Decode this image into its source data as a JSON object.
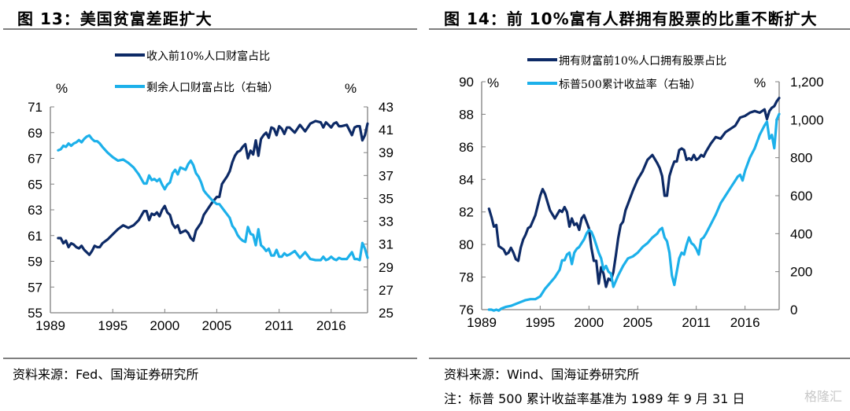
{
  "left": {
    "title": "图 13：美国贫富差距扩大",
    "source": "资料来源：Fed、国海证券研究所"
  },
  "right": {
    "title": "图 14：前 10%富有人群拥有股票的比重不断扩大",
    "source": "资料来源：Wind、国海证券研究所",
    "note": "注：标普 500 累计收益率基准为 1989 年 9 月 31 日"
  },
  "watermark": "格隆汇",
  "colors": {
    "dark": "#0d2a66",
    "light": "#1cb0ea",
    "axis": "#808080"
  },
  "chart_data": [
    {
      "type": "line",
      "title": "美国贫富差距扩大",
      "x_ticks": [
        "1989",
        "1995",
        "2000",
        "2005",
        "2011",
        "2016"
      ],
      "x_tick_years": [
        1989,
        1995,
        2000,
        2005,
        2011,
        2016
      ],
      "xlim": [
        1989.75,
        2019.5
      ],
      "left_unit": "%",
      "right_unit": "%",
      "ylim_left": [
        55,
        71
      ],
      "yticks_left": [
        "55",
        "57",
        "59",
        "61",
        "63",
        "65",
        "67",
        "69",
        "71"
      ],
      "ylim_right": [
        25,
        43
      ],
      "yticks_right": [
        "25",
        "27",
        "29",
        "31",
        "33",
        "35",
        "37",
        "39",
        "41",
        "43"
      ],
      "grid": false,
      "legend_placement": "top-center",
      "series": [
        {
          "name": "收入前10%人口财富占比",
          "axis": "left",
          "x": [
            1989.75,
            1990.0,
            1990.25,
            1990.5,
            1990.75,
            1991.0,
            1991.25,
            1991.5,
            1991.75,
            1992.0,
            1992.25,
            1992.5,
            1992.75,
            1993.0,
            1993.25,
            1993.5,
            1993.75,
            1994.0,
            1994.5,
            1995.0,
            1995.5,
            1996.0,
            1996.5,
            1997.0,
            1997.5,
            1998.0,
            1998.25,
            1998.5,
            1998.75,
            1999.0,
            1999.25,
            1999.5,
            1999.75,
            2000.0,
            2000.25,
            2000.5,
            2000.75,
            2001.0,
            2001.25,
            2001.5,
            2001.75,
            2002.0,
            2002.25,
            2002.5,
            2002.75,
            2003.0,
            2003.25,
            2003.5,
            2003.75,
            2004.0,
            2004.5,
            2005.0,
            2005.25,
            2005.5,
            2005.75,
            2006.0,
            2006.25,
            2006.5,
            2006.75,
            2007.0,
            2007.25,
            2007.5,
            2007.75,
            2008.0,
            2008.25,
            2008.5,
            2008.75,
            2009.0,
            2009.25,
            2009.5,
            2009.75,
            2010.0,
            2010.25,
            2010.5,
            2010.75,
            2011.0,
            2011.25,
            2011.5,
            2011.75,
            2012.0,
            2012.5,
            2013.0,
            2013.5,
            2014.0,
            2014.5,
            2015.0,
            2015.25,
            2015.5,
            2015.75,
            2016.0,
            2016.25,
            2016.5,
            2016.75,
            2017.0,
            2017.5,
            2018.0,
            2018.25,
            2018.5,
            2018.75,
            2019.0,
            2019.25,
            2019.5
          ],
          "values": [
            60.8,
            60.8,
            60.4,
            60.6,
            60.1,
            60.4,
            60.3,
            60.1,
            60.0,
            60.2,
            59.9,
            59.7,
            59.5,
            59.8,
            60.2,
            60.1,
            60.1,
            60.4,
            60.7,
            61.1,
            61.5,
            61.8,
            61.6,
            61.8,
            62.2,
            62.9,
            62.9,
            62.2,
            62.7,
            62.6,
            62.8,
            62.5,
            63.0,
            63.3,
            62.8,
            62.6,
            61.9,
            61.6,
            61.8,
            61.2,
            61.3,
            61.4,
            61.2,
            60.8,
            60.6,
            61.4,
            61.7,
            62.0,
            62.6,
            62.9,
            63.5,
            64.0,
            64.0,
            65.0,
            65.3,
            65.6,
            66.0,
            66.7,
            67.2,
            67.5,
            67.6,
            67.9,
            68.1,
            67.0,
            67.6,
            67.3,
            68.4,
            67.2,
            68.5,
            68.8,
            69.0,
            68.6,
            69.4,
            69.3,
            68.8,
            69.5,
            69.3,
            68.9,
            69.4,
            69.4,
            69.0,
            69.6,
            69.1,
            69.7,
            69.9,
            69.8,
            69.4,
            69.8,
            69.6,
            69.4,
            69.7,
            69.8,
            69.5,
            69.5,
            69.6,
            68.8,
            69.4,
            69.5,
            69.5,
            68.4,
            68.8,
            69.7
          ],
          "color": "#0d2a66"
        },
        {
          "name": "剩余人口财富占比（右轴）",
          "axis": "right",
          "x": [
            1989.75,
            1990.0,
            1990.25,
            1990.5,
            1990.75,
            1991.0,
            1991.25,
            1991.5,
            1991.75,
            1992.0,
            1992.25,
            1992.5,
            1992.75,
            1993.0,
            1993.25,
            1993.5,
            1993.75,
            1994.0,
            1994.5,
            1995.0,
            1995.5,
            1996.0,
            1996.5,
            1997.0,
            1997.5,
            1998.0,
            1998.25,
            1998.5,
            1998.75,
            1999.0,
            1999.25,
            1999.5,
            1999.75,
            2000.0,
            2000.25,
            2000.5,
            2000.75,
            2001.0,
            2001.25,
            2001.5,
            2001.75,
            2002.0,
            2002.25,
            2002.5,
            2002.75,
            2003.0,
            2003.25,
            2003.5,
            2003.75,
            2004.0,
            2004.5,
            2005.0,
            2005.25,
            2005.5,
            2005.75,
            2006.0,
            2006.25,
            2006.5,
            2006.75,
            2007.0,
            2007.25,
            2007.5,
            2007.75,
            2008.0,
            2008.25,
            2008.5,
            2008.75,
            2009.0,
            2009.25,
            2009.5,
            2009.75,
            2010.0,
            2010.25,
            2010.5,
            2010.75,
            2011.0,
            2011.25,
            2011.5,
            2011.75,
            2012.0,
            2012.5,
            2013.0,
            2013.5,
            2014.0,
            2014.5,
            2015.0,
            2015.25,
            2015.5,
            2015.75,
            2016.0,
            2016.25,
            2016.5,
            2016.75,
            2017.0,
            2017.5,
            2018.0,
            2018.25,
            2018.5,
            2018.75,
            2019.0,
            2019.25,
            2019.5
          ],
          "values": [
            39.2,
            39.3,
            39.6,
            39.5,
            39.8,
            39.6,
            39.8,
            39.9,
            40.1,
            39.9,
            40.2,
            40.4,
            40.5,
            40.2,
            40.0,
            40.0,
            39.8,
            39.5,
            39.0,
            38.6,
            38.3,
            38.4,
            38.1,
            37.7,
            37.1,
            36.3,
            36.3,
            37.0,
            36.6,
            36.7,
            36.5,
            36.7,
            36.2,
            35.8,
            36.2,
            36.4,
            37.2,
            37.5,
            37.1,
            37.7,
            37.6,
            37.5,
            38.0,
            38.3,
            37.9,
            37.2,
            36.9,
            36.4,
            35.7,
            35.4,
            34.9,
            34.5,
            34.5,
            34.2,
            33.9,
            33.6,
            33.3,
            32.6,
            32.3,
            31.8,
            31.5,
            31.3,
            31.2,
            32.5,
            31.9,
            31.8,
            30.9,
            32.3,
            30.9,
            30.7,
            30.4,
            30.6,
            30.0,
            30.0,
            30.5,
            29.9,
            29.9,
            30.2,
            30.0,
            30.1,
            30.4,
            29.8,
            30.3,
            29.7,
            29.6,
            29.6,
            29.9,
            29.6,
            29.7,
            29.9,
            29.7,
            29.6,
            29.8,
            29.7,
            29.7,
            30.3,
            29.7,
            29.7,
            29.6,
            31.1,
            30.6,
            29.8
          ],
          "color": "#1cb0ea"
        }
      ]
    },
    {
      "type": "line",
      "title": "前10%富有人群拥有股票的比重不断扩大",
      "x_ticks": [
        "1989",
        "1995",
        "2000",
        "2005",
        "2011",
        "2016"
      ],
      "x_tick_years": [
        1989,
        1995,
        2000,
        2005,
        2011,
        2016
      ],
      "xlim": [
        1989.75,
        2019.5
      ],
      "left_unit": "%",
      "right_unit": "%",
      "ylim_left": [
        76,
        90
      ],
      "yticks_left": [
        "76",
        "78",
        "80",
        "82",
        "84",
        "86",
        "88",
        "90"
      ],
      "ylim_right": [
        0,
        1200
      ],
      "yticks_right": [
        "0",
        "200",
        "400",
        "600",
        "800",
        "1,000",
        "1,200"
      ],
      "grid": false,
      "legend_placement": "top-center",
      "series": [
        {
          "name": "拥有财富前10%人口拥有股票占比",
          "axis": "left",
          "x": [
            1989.75,
            1990.0,
            1990.25,
            1990.5,
            1990.75,
            1991.0,
            1991.25,
            1991.5,
            1991.75,
            1992.0,
            1992.25,
            1992.5,
            1992.75,
            1993.0,
            1993.25,
            1993.5,
            1993.75,
            1994.0,
            1994.5,
            1995.0,
            1995.25,
            1995.5,
            1995.75,
            1996.0,
            1996.5,
            1997.0,
            1997.25,
            1997.5,
            1997.75,
            1998.0,
            1998.25,
            1998.5,
            1998.75,
            1999.0,
            1999.25,
            1999.5,
            1999.75,
            2000.0,
            2000.25,
            2000.5,
            2000.75,
            2001.0,
            2001.25,
            2001.5,
            2001.75,
            2002.0,
            2002.25,
            2002.5,
            2002.75,
            2003.0,
            2003.25,
            2003.5,
            2003.75,
            2004.0,
            2004.5,
            2005.0,
            2005.5,
            2006.0,
            2006.5,
            2007.0,
            2007.25,
            2007.5,
            2007.75,
            2008.0,
            2008.25,
            2008.5,
            2008.75,
            2009.0,
            2009.25,
            2009.5,
            2009.75,
            2010.0,
            2010.25,
            2010.5,
            2010.75,
            2011.0,
            2011.25,
            2011.5,
            2011.75,
            2012.0,
            2012.5,
            2013.0,
            2013.5,
            2014.0,
            2014.5,
            2015.0,
            2015.5,
            2016.0,
            2016.5,
            2017.0,
            2017.5,
            2018.0,
            2018.25,
            2018.5,
            2018.75,
            2019.0,
            2019.25,
            2019.5
          ],
          "values": [
            82.2,
            81.7,
            81.1,
            81.2,
            79.9,
            79.8,
            79.7,
            79.4,
            79.5,
            79.8,
            79.5,
            79.1,
            79.0,
            79.8,
            80.3,
            80.6,
            81.0,
            81.1,
            81.8,
            83.0,
            83.4,
            83.1,
            82.6,
            82.1,
            81.6,
            82.1,
            82.0,
            82.3,
            82.0,
            81.1,
            81.6,
            81.2,
            81.3,
            80.9,
            81.6,
            81.8,
            81.4,
            81.0,
            79.8,
            79.0,
            79.0,
            77.6,
            78.6,
            78.2,
            77.4,
            77.9,
            77.8,
            78.3,
            79.3,
            80.4,
            81.2,
            81.4,
            82.1,
            82.5,
            83.3,
            84.0,
            84.5,
            85.2,
            85.5,
            85.0,
            84.7,
            84.2,
            83.0,
            83.0,
            84.2,
            84.7,
            85.1,
            85.1,
            85.8,
            85.9,
            85.8,
            85.2,
            85.3,
            85.2,
            85.5,
            85.2,
            85.3,
            85.5,
            85.4,
            85.7,
            86.2,
            86.6,
            86.5,
            86.9,
            87.1,
            87.3,
            87.8,
            87.9,
            88.1,
            88.2,
            88.1,
            88.3,
            87.7,
            88.2,
            88.4,
            88.5,
            88.8,
            89.0
          ],
          "color": "#0d2a66"
        },
        {
          "name": "标普500累计收益率（右轴）",
          "axis": "right",
          "x": [
            1989.75,
            1990.0,
            1990.25,
            1990.5,
            1990.75,
            1991.0,
            1991.5,
            1992.0,
            1992.5,
            1993.0,
            1993.5,
            1994.0,
            1994.5,
            1995.0,
            1995.5,
            1996.0,
            1996.5,
            1997.0,
            1997.25,
            1997.5,
            1997.75,
            1998.0,
            1998.25,
            1998.5,
            1998.75,
            1999.0,
            1999.25,
            1999.5,
            1999.75,
            2000.0,
            2000.25,
            2000.5,
            2000.75,
            2001.0,
            2001.25,
            2001.5,
            2001.75,
            2002.0,
            2002.25,
            2002.5,
            2002.75,
            2003.0,
            2003.5,
            2004.0,
            2004.5,
            2005.0,
            2005.5,
            2006.0,
            2006.5,
            2007.0,
            2007.25,
            2007.5,
            2007.75,
            2008.0,
            2008.25,
            2008.5,
            2008.75,
            2009.0,
            2009.25,
            2009.5,
            2009.75,
            2010.0,
            2010.25,
            2010.5,
            2010.75,
            2011.0,
            2011.25,
            2011.5,
            2011.75,
            2012.0,
            2012.5,
            2013.0,
            2013.5,
            2014.0,
            2014.5,
            2015.0,
            2015.25,
            2015.5,
            2015.75,
            2016.0,
            2016.5,
            2017.0,
            2017.5,
            2018.0,
            2018.25,
            2018.5,
            2018.75,
            2019.0,
            2019.25,
            2019.5
          ],
          "values": [
            0,
            0,
            -5,
            0,
            -5,
            5,
            15,
            20,
            30,
            40,
            50,
            55,
            55,
            70,
            110,
            140,
            170,
            210,
            260,
            260,
            290,
            300,
            240,
            300,
            320,
            330,
            350,
            370,
            400,
            420,
            410,
            380,
            340,
            300,
            270,
            210,
            230,
            200,
            190,
            120,
            150,
            180,
            230,
            270,
            280,
            300,
            330,
            350,
            380,
            400,
            420,
            430,
            380,
            360,
            300,
            180,
            130,
            200,
            270,
            300,
            290,
            340,
            380,
            350,
            340,
            320,
            290,
            370,
            380,
            400,
            450,
            500,
            560,
            600,
            640,
            680,
            700,
            710,
            680,
            730,
            800,
            850,
            920,
            970,
            990,
            900,
            920,
            850,
            1000,
            1030
          ],
          "color": "#1cb0ea"
        }
      ]
    }
  ]
}
